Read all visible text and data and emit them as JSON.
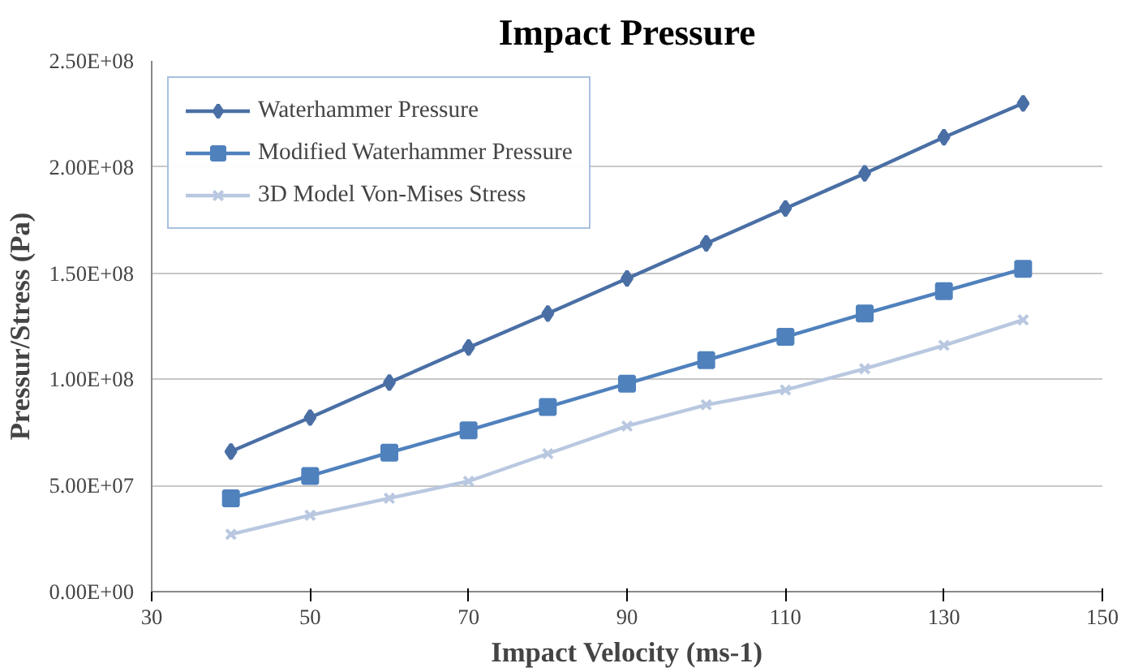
{
  "chart_data": {
    "type": "line",
    "title": "Impact Pressure",
    "xlabel": "Impact Velocity (ms-1)",
    "ylabel": "Pressur/Stress (Pa)",
    "x": [
      40,
      50,
      60,
      70,
      80,
      90,
      100,
      110,
      120,
      130,
      140
    ],
    "series": [
      {
        "name": "Waterhammer Pressure",
        "color": "#4a6fa5",
        "marker": "diamond",
        "values": [
          66000000,
          82000000,
          98500000,
          115000000,
          131000000,
          147500000,
          164000000,
          180500000,
          197000000,
          214000000,
          230000000
        ]
      },
      {
        "name": "Modified Waterhammer Pressure",
        "color": "#4f81bd",
        "marker": "square",
        "values": [
          44000000,
          54500000,
          65500000,
          76000000,
          87000000,
          98000000,
          109000000,
          120000000,
          131000000,
          141500000,
          152000000
        ]
      },
      {
        "name": "3D Model Von-Mises Stress",
        "color": "#b9c8e0",
        "marker": "cross",
        "values": [
          27000000,
          36000000,
          44000000,
          52000000,
          65000000,
          78000000,
          88000000,
          95000000,
          105000000,
          116000000,
          128000000
        ]
      }
    ],
    "xlim": [
      30,
      150
    ],
    "xticks": [
      30,
      50,
      70,
      90,
      110,
      130,
      150
    ],
    "ylim": [
      0,
      250000000
    ],
    "yticks": [
      {
        "value": 0,
        "label": "0.00E+00"
      },
      {
        "value": 50000000,
        "label": "5.00E+07"
      },
      {
        "value": 100000000,
        "label": "1.00E+08"
      },
      {
        "value": 150000000,
        "label": "1.50E+08"
      },
      {
        "value": 200000000,
        "label": "2.00E+08"
      },
      {
        "value": 250000000,
        "label": "2.50E+08"
      }
    ],
    "grid": "y",
    "legend": "top left",
    "line_style": "solid"
  }
}
